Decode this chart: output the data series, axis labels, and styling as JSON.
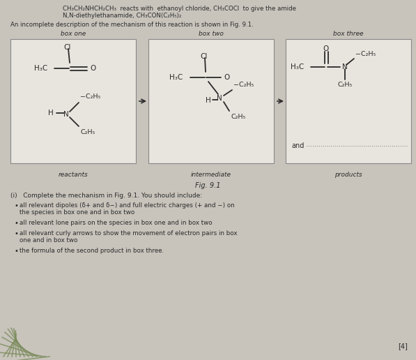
{
  "bg_color": "#c8c4bc",
  "box_color": "#e8e5de",
  "box_border": "#888888",
  "text_color": "#2a2a2a",
  "title_line1": "CH₃CH₂NHCH₂CH₃  reacts with  ethanoyl chloride, CH₃COCl  to give the amide",
  "title_line2": "N,N-diethylethanamide, CH₃CON(C₂H₅)₂",
  "desc_text": "An incomplete description of the mechanism of this reaction is shown in Fig. 9.1.",
  "box_labels": [
    "box one",
    "box two",
    "box three"
  ],
  "box_labels_below": [
    "reactants",
    "intermediate",
    "products"
  ],
  "fig_label": "Fig. 9.1",
  "question_text": "(i)   Complete the mechanism in Fig. 9.1. You should include:",
  "bullets": [
    "all relevant dipoles (δ+ and δ−) and full electric charges (+ and −) on the species in box one and in box two",
    "all relevant lone pairs on the species in box one and in box two",
    "all relevant curly arrows to show the movement of electron pairs in box one and in box two",
    "the formula of the second product in box three."
  ],
  "mark": "[4]",
  "plant_color": "#7a8a5a"
}
